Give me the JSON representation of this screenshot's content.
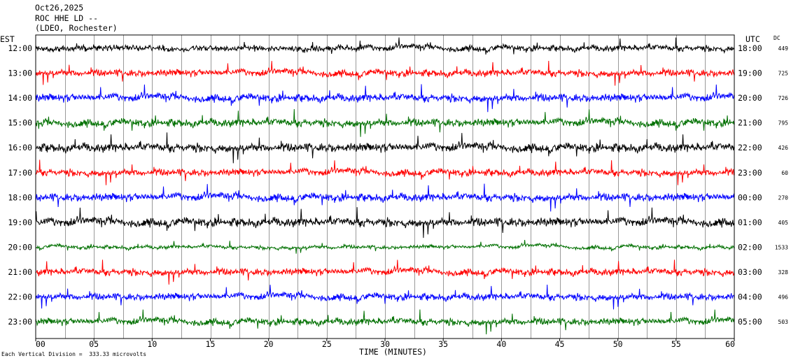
{
  "header": {
    "date": "Oct26,2025",
    "station": "ROC HHE LD --",
    "location": "(LDEO, Rochester)"
  },
  "axis_labels": {
    "left": "EST",
    "right": "UTC",
    "dc": "DC",
    "x": "TIME (MINUTES)"
  },
  "footer": {
    "scale_note": "Each Vertical Division =  333.33 microvolts"
  },
  "chart_data": {
    "type": "line",
    "title": "",
    "xlabel": "TIME (MINUTES)",
    "xlim": [
      0,
      60
    ],
    "x_ticks": [
      "00",
      "05",
      "10",
      "15",
      "20",
      "25",
      "30",
      "35",
      "40",
      "45",
      "50",
      "55",
      "60"
    ],
    "grid": "vertical lines every 2.5 minutes",
    "colors": [
      "#000000",
      "#ff0000",
      "#0000ff",
      "#007000"
    ],
    "rows": [
      {
        "est": "12:00",
        "utc": "18:00",
        "dc": "449",
        "color": "#000000"
      },
      {
        "est": "13:00",
        "utc": "19:00",
        "dc": "725",
        "color": "#ff0000"
      },
      {
        "est": "14:00",
        "utc": "20:00",
        "dc": "726",
        "color": "#0000ff"
      },
      {
        "est": "15:00",
        "utc": "21:00",
        "dc": "795",
        "color": "#007000"
      },
      {
        "est": "16:00",
        "utc": "22:00",
        "dc": "426",
        "color": "#000000"
      },
      {
        "est": "17:00",
        "utc": "23:00",
        "dc": "60",
        "color": "#ff0000"
      },
      {
        "est": "18:00",
        "utc": "00:00",
        "dc": "270",
        "color": "#0000ff"
      },
      {
        "est": "19:00",
        "utc": "01:00",
        "dc": "405",
        "color": "#000000"
      },
      {
        "est": "20:00",
        "utc": "02:00",
        "dc": "1533",
        "color": "#007000"
      },
      {
        "est": "21:00",
        "utc": "03:00",
        "dc": "328",
        "color": "#ff0000"
      },
      {
        "est": "22:00",
        "utc": "04:00",
        "dc": "496",
        "color": "#0000ff"
      },
      {
        "est": "23:00",
        "utc": "05:00",
        "dc": "503",
        "color": "#007000"
      }
    ]
  }
}
